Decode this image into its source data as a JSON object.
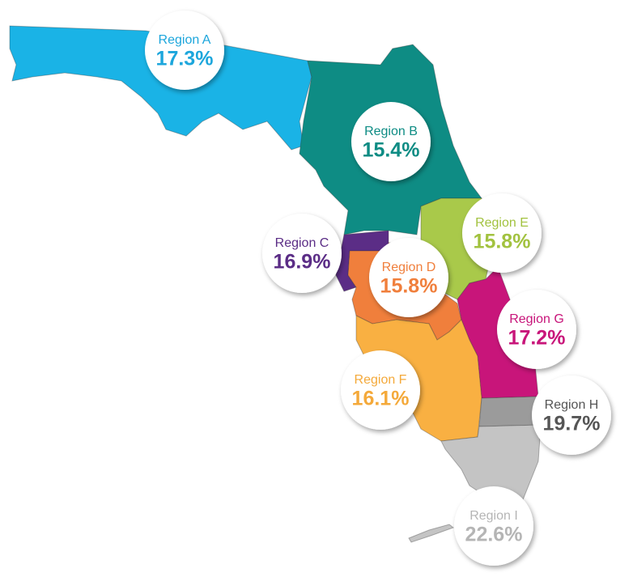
{
  "regions": [
    {
      "name": "Region A",
      "value": "17.3%"
    },
    {
      "name": "Region B",
      "value": "15.4%"
    },
    {
      "name": "Region C",
      "value": "16.9%"
    },
    {
      "name": "Region D",
      "value": "15.8%"
    },
    {
      "name": "Region E",
      "value": "15.8%"
    },
    {
      "name": "Region F",
      "value": "16.1%"
    },
    {
      "name": "Region G",
      "value": "17.2%"
    },
    {
      "name": "Region H",
      "value": "19.7%"
    },
    {
      "name": "Region I",
      "value": "22.6%"
    }
  ]
}
